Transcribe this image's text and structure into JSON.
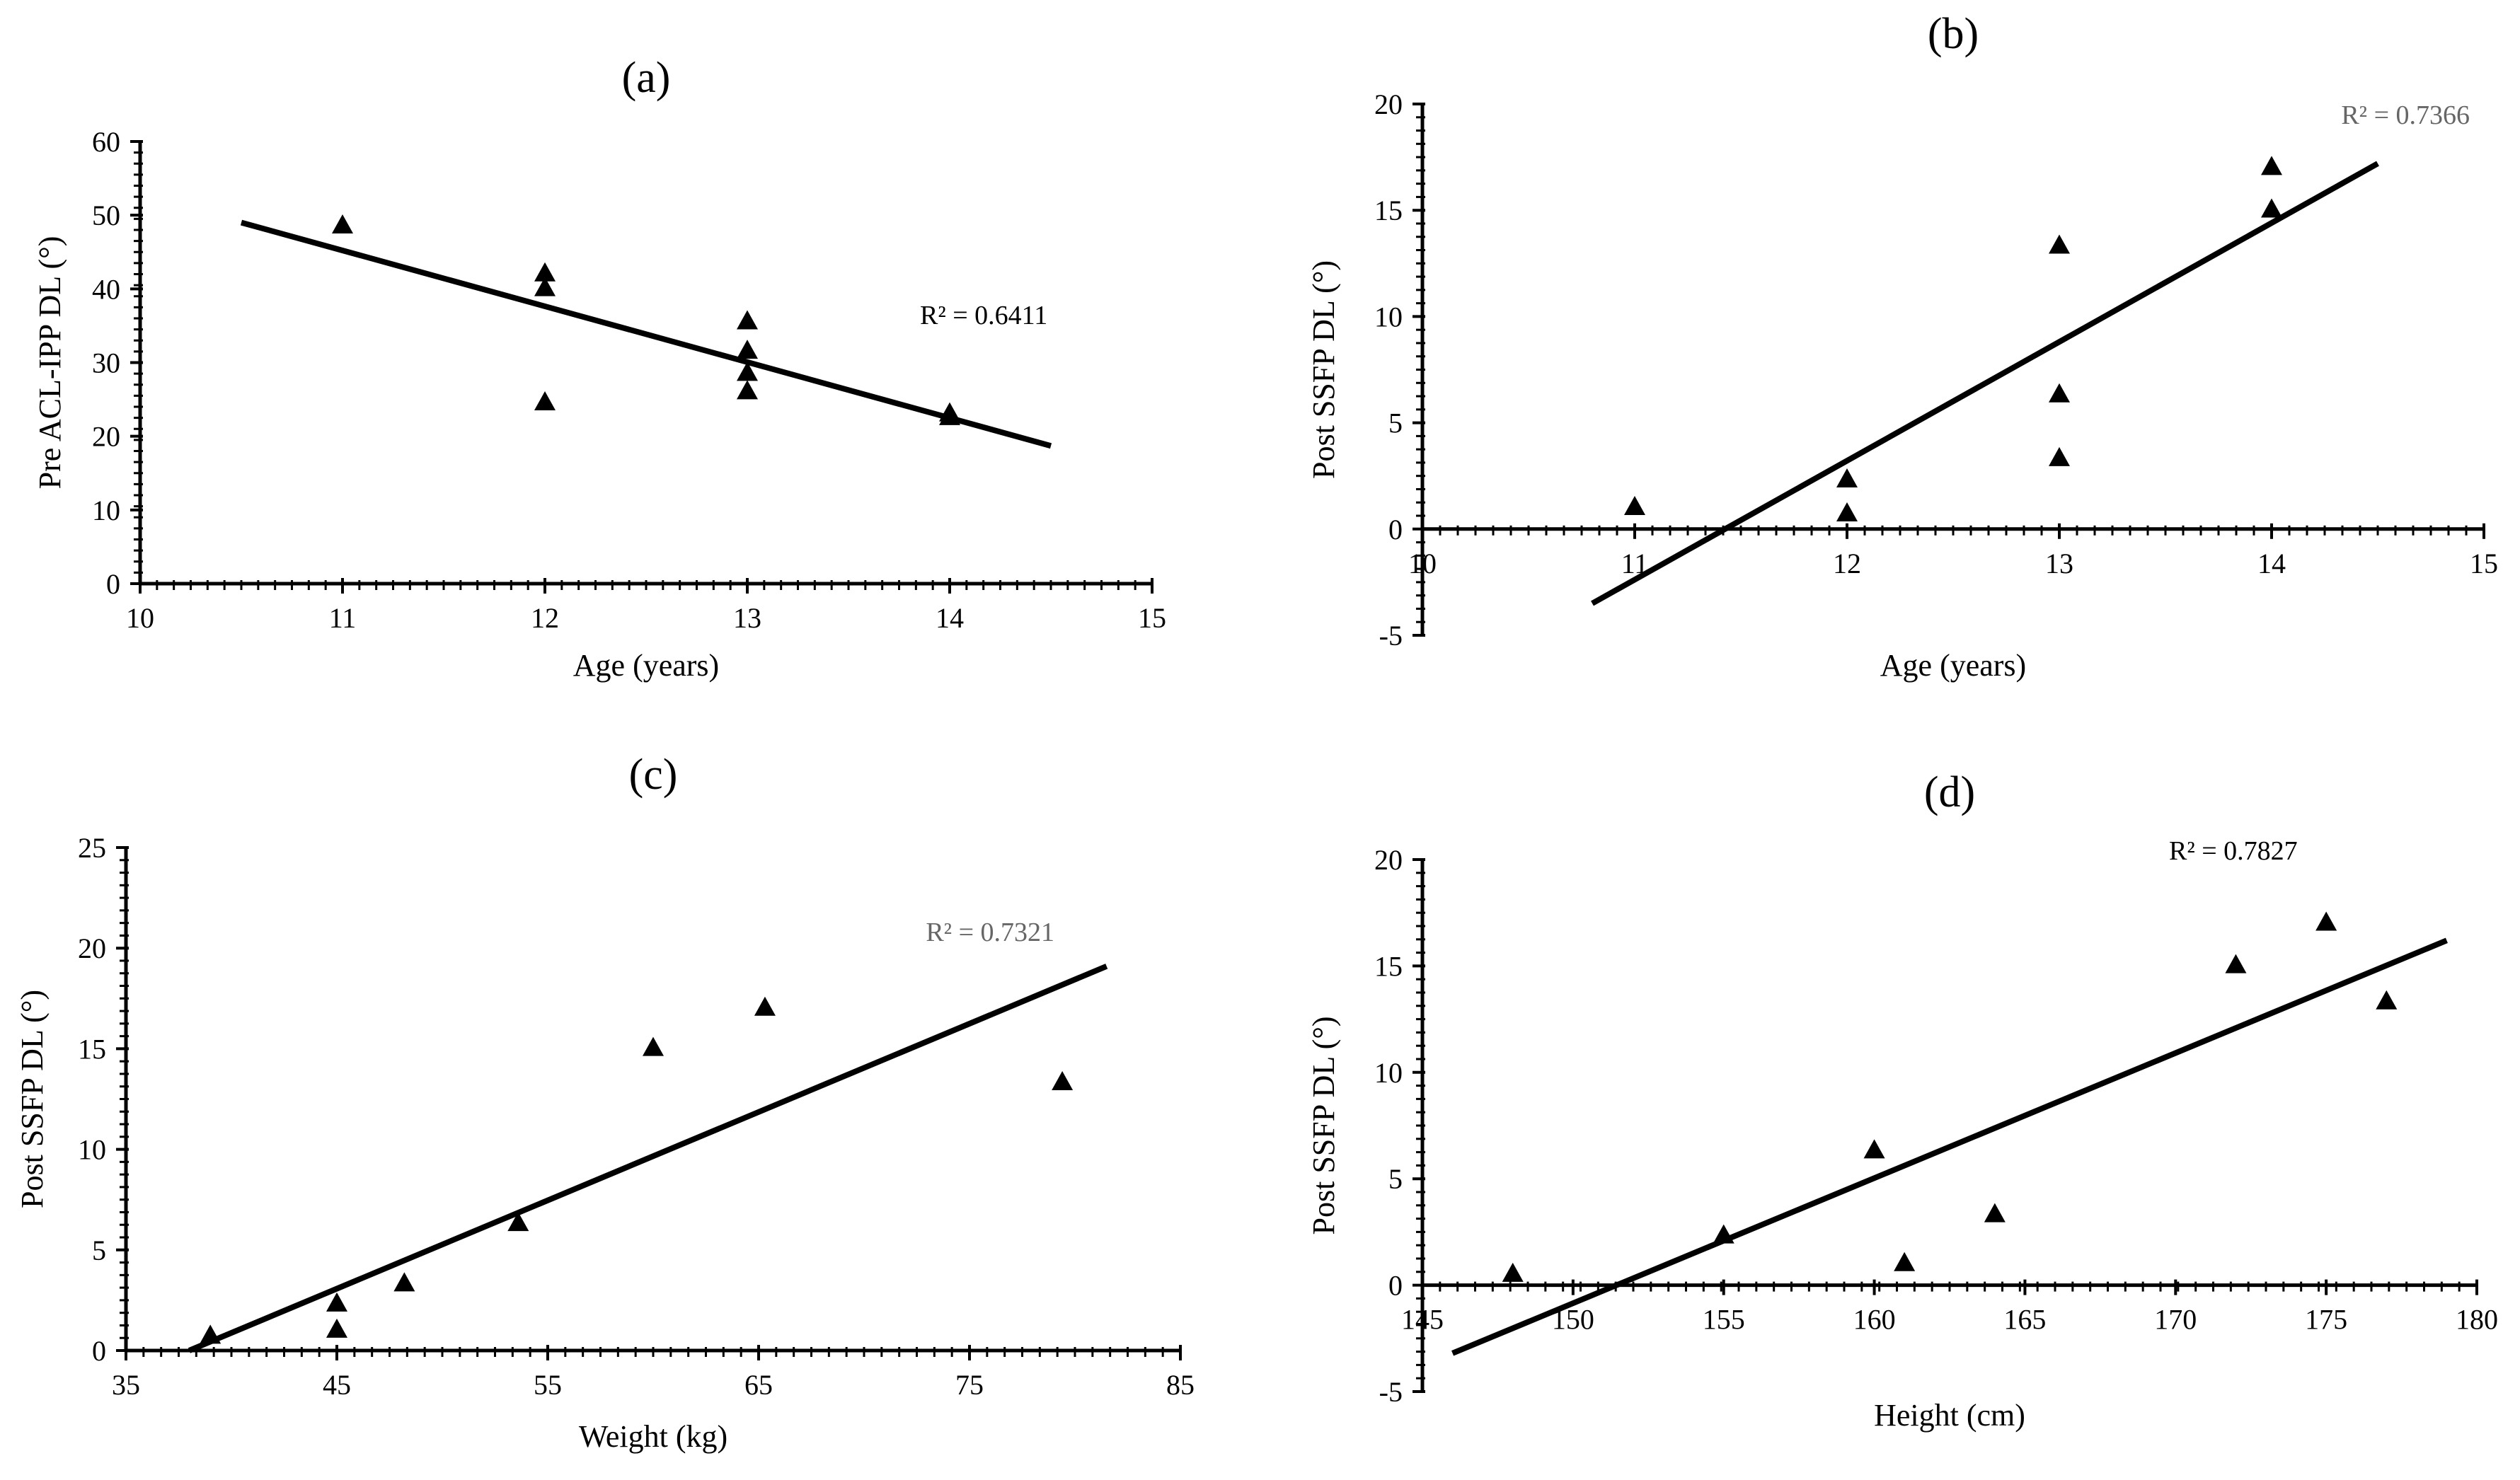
{
  "chart_data": [
    {
      "type": "scatter",
      "title": "(a)",
      "xlabel": "Age (years)",
      "ylabel": "Pre ACL-IPP DL (°)",
      "xlim": [
        10,
        15
      ],
      "ylim": [
        0,
        60
      ],
      "xticks": [
        10,
        11,
        12,
        13,
        14,
        15
      ],
      "yticks": [
        0,
        10,
        20,
        30,
        40,
        50,
        60
      ],
      "points": [
        [
          11,
          48.5
        ],
        [
          12,
          42
        ],
        [
          12,
          40
        ],
        [
          12,
          24.5
        ],
        [
          13,
          35.5
        ],
        [
          13,
          31.5
        ],
        [
          13,
          28.5
        ],
        [
          13,
          26
        ],
        [
          14,
          23
        ],
        [
          14,
          22.5
        ]
      ],
      "trendline": {
        "x": [
          10.5,
          14.5
        ],
        "y": [
          49,
          18.7
        ]
      },
      "r2_label": "R² = 0.6411",
      "r2_color": "#000000"
    },
    {
      "type": "scatter",
      "title": "(b)",
      "xlabel": "Age (years)",
      "ylabel": "Post SSFP DL (°)",
      "xlim": [
        10,
        15
      ],
      "ylim": [
        -5,
        20
      ],
      "xticks": [
        10,
        11,
        12,
        13,
        14,
        15
      ],
      "yticks": [
        -5,
        0,
        5,
        10,
        15,
        20
      ],
      "points": [
        [
          11,
          1
        ],
        [
          12,
          2.3
        ],
        [
          12,
          0.7
        ],
        [
          13,
          13.3
        ],
        [
          13,
          6.3
        ],
        [
          13,
          3.3
        ],
        [
          14,
          17
        ],
        [
          14,
          15
        ]
      ],
      "trendline": {
        "x": [
          10.8,
          14.5
        ],
        "y": [
          -3.5,
          17.2
        ]
      },
      "r2_label": "R² = 0.7366",
      "r2_color": "#666666"
    },
    {
      "type": "scatter",
      "title": "(c)",
      "xlabel": "Weight (kg)",
      "ylabel": "Post SSFP DL (°)",
      "xlim": [
        35,
        85
      ],
      "ylim": [
        0,
        25
      ],
      "xticks": [
        35,
        45,
        55,
        65,
        75,
        85
      ],
      "yticks": [
        0,
        5,
        10,
        15,
        20,
        25
      ],
      "points": [
        [
          39,
          0.7
        ],
        [
          45,
          2.3
        ],
        [
          45,
          1
        ],
        [
          48.2,
          3.3
        ],
        [
          53.6,
          6.3
        ],
        [
          60,
          15
        ],
        [
          65.3,
          17
        ],
        [
          79.4,
          13.3
        ]
      ],
      "trendline": {
        "x": [
          38,
          81.5
        ],
        "y": [
          0,
          19.1
        ]
      },
      "r2_label": "R² = 0.7321",
      "r2_color": "#666666"
    },
    {
      "type": "scatter",
      "title": "(d)",
      "xlabel": "Height (cm)",
      "ylabel": "Post SSFP DL (°)",
      "xlim": [
        145,
        180
      ],
      "ylim": [
        -5,
        20
      ],
      "xticks": [
        145,
        150,
        155,
        160,
        165,
        170,
        175,
        180
      ],
      "xtick_labels": [
        "145",
        "150",
        "155",
        "160",
        "165",
        "170",
        "175",
        "180"
      ],
      "yticks": [
        -5,
        0,
        5,
        10,
        15,
        20
      ],
      "points": [
        [
          148,
          0.5
        ],
        [
          155,
          2.3
        ],
        [
          160,
          6.3
        ],
        [
          161,
          1
        ],
        [
          164,
          3.3
        ],
        [
          172,
          15
        ],
        [
          175,
          17
        ],
        [
          177,
          13.3
        ]
      ],
      "trendline": {
        "x": [
          146,
          179
        ],
        "y": [
          -3.2,
          16.2
        ]
      },
      "r2_label": "R² = 0.7827",
      "r2_color": "#000000"
    }
  ]
}
